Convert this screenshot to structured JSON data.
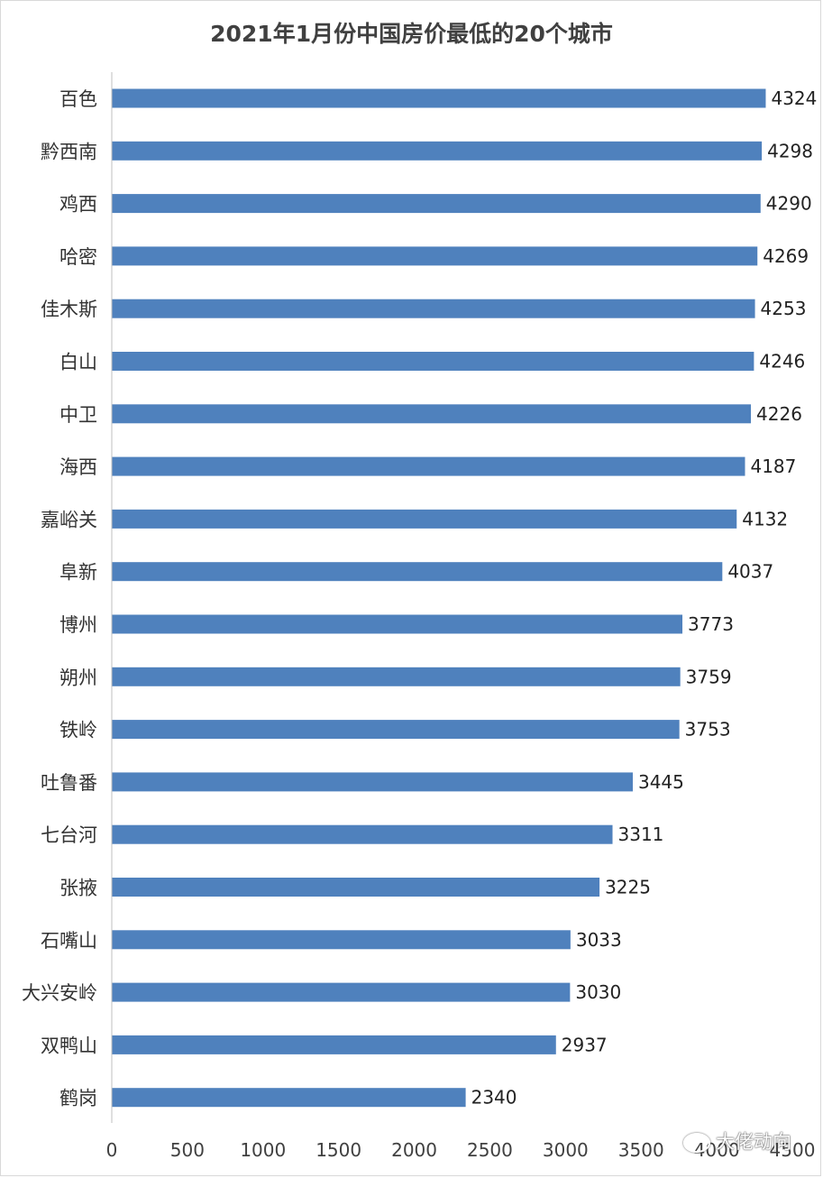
{
  "chart_data": {
    "type": "bar",
    "orientation": "horizontal",
    "title": "2021年1月份中国房价最低的20个城市",
    "categories": [
      "百色",
      "黔西南",
      "鸡西",
      "哈密",
      "佳木斯",
      "白山",
      "中卫",
      "海西",
      "嘉峪关",
      "阜新",
      "博州",
      "朔州",
      "铁岭",
      "吐鲁番",
      "七台河",
      "张掖",
      "石嘴山",
      "大兴安岭",
      "双鸭山",
      "鹤岗"
    ],
    "values": [
      4324,
      4298,
      4290,
      4269,
      4253,
      4246,
      4226,
      4187,
      4132,
      4037,
      3773,
      3759,
      3753,
      3445,
      3311,
      3225,
      3033,
      3030,
      2937,
      2340
    ],
    "xlim": [
      0,
      4500
    ],
    "xticks": [
      0,
      500,
      1000,
      1500,
      2000,
      2500,
      3000,
      3500,
      4000,
      4500
    ],
    "grid": false,
    "data_labels": true,
    "bar_color": "#4f81bd"
  },
  "watermark": {
    "icon": "wechat-icon",
    "text": "大佬动向"
  }
}
